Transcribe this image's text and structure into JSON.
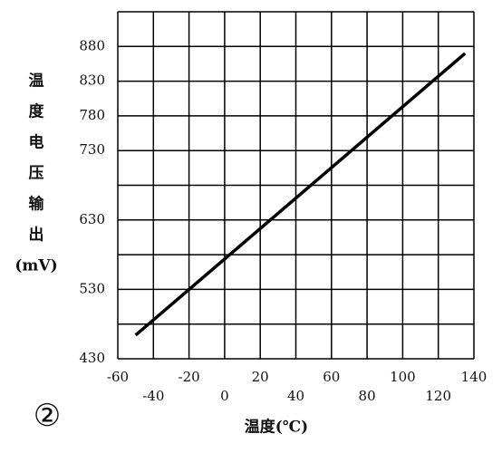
{
  "chart_data": {
    "type": "line",
    "ylabel": [
      "温",
      "度",
      "电",
      "压",
      "输",
      "出",
      "(mV)"
    ],
    "xlabel": "温度(℃)",
    "annotation": "②",
    "x": [
      -50,
      135
    ],
    "series": [
      {
        "values": [
          464,
          870
        ],
        "color": "#000000"
      }
    ],
    "xlim": [
      -60,
      140
    ],
    "xticks": [
      -60,
      -40,
      -20,
      0,
      20,
      40,
      60,
      80,
      100,
      120,
      140
    ],
    "ylim": [
      430,
      930
    ],
    "yticks": [
      430,
      530,
      630,
      730,
      780,
      830,
      880
    ],
    "ygrid": [
      430,
      480,
      530,
      580,
      630,
      680,
      730,
      780,
      830,
      880,
      930
    ],
    "grid": true
  }
}
